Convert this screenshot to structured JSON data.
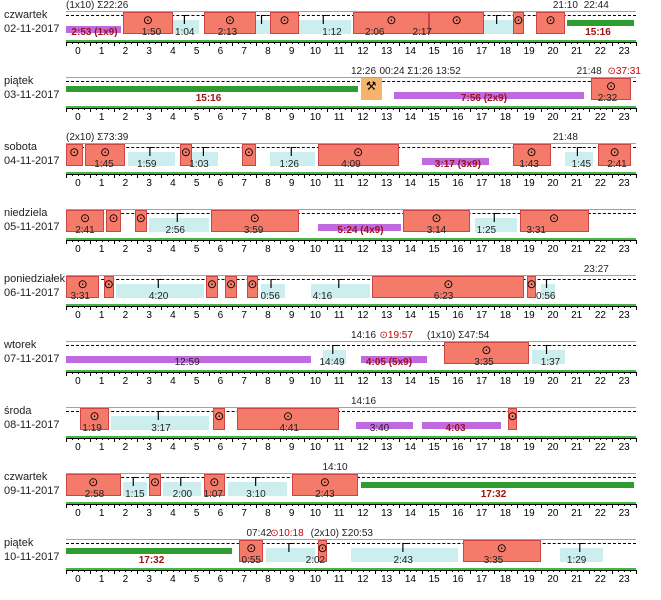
{
  "hours": [
    "0",
    "1",
    "2",
    "3",
    "4",
    "5",
    "6",
    "7",
    "8",
    "9",
    "10",
    "11",
    "12",
    "13",
    "14",
    "15",
    "16",
    "17",
    "18",
    "19",
    "20",
    "21",
    "22",
    "23"
  ],
  "colors": {
    "drive": "#f47a6a",
    "rest": "#cdeeee",
    "work": "#f5b46a",
    "avail": "#fbeaa0",
    "green": "#2e9c2e",
    "purple": "#c06adf"
  },
  "icons": {
    "rest": "bed-icon",
    "drive": "steering-wheel-icon",
    "work": "hammer-icon"
  },
  "days": [
    {
      "name": "czwartek",
      "date": "02-11-2017",
      "headers": [
        {
          "h": 0,
          "text": "(1x10) Σ22:26"
        },
        {
          "h": 20.5,
          "text": "21:10"
        },
        {
          "h": 21.8,
          "text": "22:44"
        }
      ],
      "segments": [
        {
          "t": "purple",
          "s": 0,
          "e": 2.3
        },
        {
          "t": "drive",
          "s": 2.4,
          "e": 4.5
        },
        {
          "t": "rest",
          "s": 4.5,
          "e": 5.6
        },
        {
          "t": "drive",
          "s": 5.8,
          "e": 8.0
        },
        {
          "t": "rest",
          "s": 8.0,
          "e": 8.6
        },
        {
          "t": "drive",
          "s": 8.6,
          "e": 9.8
        },
        {
          "t": "rest",
          "s": 9.8,
          "e": 12.0
        },
        {
          "t": "drive",
          "s": 12.1,
          "e": 15.3
        },
        {
          "t": "drive",
          "s": 15.3,
          "e": 17.6
        },
        {
          "t": "rest",
          "s": 17.6,
          "e": 18.8
        },
        {
          "t": "drive",
          "s": 18.8,
          "e": 19.3
        },
        {
          "t": "drive",
          "s": 19.8,
          "e": 21.0
        },
        {
          "t": "green",
          "s": 21.1,
          "e": 23.9
        }
      ],
      "labels": [
        {
          "h": 1.2,
          "text": "2:53 (1x9)",
          "bold": true
        },
        {
          "h": 3.6,
          "text": "1:50"
        },
        {
          "h": 5.0,
          "text": "1:04"
        },
        {
          "h": 6.8,
          "text": "2:13"
        },
        {
          "h": 11.2,
          "text": "1:12"
        },
        {
          "h": 13.0,
          "text": "2:06"
        },
        {
          "h": 15.0,
          "text": "2:17"
        },
        {
          "h": 22.4,
          "text": "15:16",
          "bold": true
        }
      ]
    },
    {
      "name": "piątek",
      "date": "03-11-2017",
      "headers": [
        {
          "h": 12.0,
          "text": "12:26"
        },
        {
          "h": 13.2,
          "text": "00:24 Σ1:26 13:52"
        },
        {
          "h": 21.5,
          "text": "21:48"
        },
        {
          "h": 22.8,
          "text": "37:31",
          "red": true
        }
      ],
      "segments": [
        {
          "t": "green",
          "s": 0,
          "e": 12.3
        },
        {
          "t": "work",
          "s": 12.4,
          "e": 13.3
        },
        {
          "t": "purple",
          "s": 13.8,
          "e": 21.8
        },
        {
          "t": "drive",
          "s": 22.1,
          "e": 23.8
        }
      ],
      "labels": [
        {
          "h": 6.0,
          "text": "15:16",
          "bold": true
        },
        {
          "h": 17.6,
          "text": "7:56 (2x9)",
          "bold": true
        },
        {
          "h": 22.8,
          "text": "2:32"
        }
      ]
    },
    {
      "name": "sobota",
      "date": "04-11-2017",
      "headers": [
        {
          "h": 0,
          "text": "(2x10) Σ73:39"
        },
        {
          "h": 20.5,
          "text": "21:48"
        }
      ],
      "segments": [
        {
          "t": "drive",
          "s": 0,
          "e": 0.7
        },
        {
          "t": "drive",
          "s": 0.8,
          "e": 2.5
        },
        {
          "t": "rest",
          "s": 2.6,
          "e": 4.6
        },
        {
          "t": "drive",
          "s": 4.8,
          "e": 5.3
        },
        {
          "t": "rest",
          "s": 5.3,
          "e": 6.4
        },
        {
          "t": "drive",
          "s": 7.4,
          "e": 8.0
        },
        {
          "t": "rest",
          "s": 8.6,
          "e": 10.5
        },
        {
          "t": "drive",
          "s": 10.6,
          "e": 14.0
        },
        {
          "t": "purple",
          "s": 15.0,
          "e": 17.8
        },
        {
          "t": "drive",
          "s": 18.8,
          "e": 20.4
        },
        {
          "t": "rest",
          "s": 21.0,
          "e": 22.2
        },
        {
          "t": "drive",
          "s": 22.4,
          "e": 23.8
        }
      ],
      "labels": [
        {
          "h": 1.6,
          "text": "1:45"
        },
        {
          "h": 3.4,
          "text": "1:59"
        },
        {
          "h": 5.6,
          "text": "1:03"
        },
        {
          "h": 9.4,
          "text": "1:26"
        },
        {
          "h": 12.0,
          "text": "4:09"
        },
        {
          "h": 16.5,
          "text": "3:17 (3x9)",
          "bold": true
        },
        {
          "h": 19.5,
          "text": "1:43"
        },
        {
          "h": 21.7,
          "text": "1:45"
        },
        {
          "h": 23.2,
          "text": "2:41"
        }
      ]
    },
    {
      "name": "niedziela",
      "date": "05-11-2017",
      "headers": [],
      "segments": [
        {
          "t": "drive",
          "s": 0,
          "e": 1.6
        },
        {
          "t": "drive",
          "s": 1.7,
          "e": 2.3
        },
        {
          "t": "drive",
          "s": 2.9,
          "e": 3.4
        },
        {
          "t": "rest",
          "s": 3.5,
          "e": 6.0
        },
        {
          "t": "drive",
          "s": 6.1,
          "e": 9.8
        },
        {
          "t": "purple",
          "s": 10.6,
          "e": 14.1
        },
        {
          "t": "drive",
          "s": 14.2,
          "e": 17.0
        },
        {
          "t": "rest",
          "s": 17.2,
          "e": 19.0
        },
        {
          "t": "drive",
          "s": 19.1,
          "e": 22.0
        }
      ],
      "labels": [
        {
          "h": 0.8,
          "text": "2:41"
        },
        {
          "h": 4.6,
          "text": "2:56"
        },
        {
          "h": 7.9,
          "text": "3:59"
        },
        {
          "h": 12.4,
          "text": "5:24 (4x9)",
          "bold": true
        },
        {
          "h": 15.6,
          "text": "3:14"
        },
        {
          "h": 17.7,
          "text": "1:25"
        },
        {
          "h": 19.8,
          "text": "3:31"
        }
      ]
    },
    {
      "name": "poniedziałek",
      "date": "06-11-2017",
      "headers": [
        {
          "h": 21.8,
          "text": "23:27"
        }
      ],
      "segments": [
        {
          "t": "drive",
          "s": 0,
          "e": 1.4
        },
        {
          "t": "drive",
          "s": 1.6,
          "e": 2.0
        },
        {
          "t": "rest",
          "s": 2.1,
          "e": 5.8
        },
        {
          "t": "drive",
          "s": 5.9,
          "e": 6.4
        },
        {
          "t": "drive",
          "s": 6.7,
          "e": 7.2
        },
        {
          "t": "drive",
          "s": 7.6,
          "e": 8.1
        },
        {
          "t": "rest",
          "s": 8.2,
          "e": 9.2
        },
        {
          "t": "rest",
          "s": 10.3,
          "e": 12.8
        },
        {
          "t": "drive",
          "s": 12.9,
          "e": 19.3
        },
        {
          "t": "drive",
          "s": 19.4,
          "e": 19.8
        },
        {
          "t": "rest",
          "s": 20.0,
          "e": 20.6
        }
      ],
      "labels": [
        {
          "h": 0.6,
          "text": "3:31"
        },
        {
          "h": 3.9,
          "text": "4:20"
        },
        {
          "h": 8.6,
          "text": "0:56"
        },
        {
          "h": 10.8,
          "text": "4:16"
        },
        {
          "h": 15.9,
          "text": "6:23"
        },
        {
          "h": 20.2,
          "text": "0:56"
        }
      ]
    },
    {
      "name": "wtorek",
      "date": "07-11-2017",
      "headers": [
        {
          "h": 12.0,
          "text": "14:16"
        },
        {
          "h": 13.2,
          "text": "19:57",
          "red": true
        },
        {
          "h": 15.2,
          "text": "(1x10) Σ47:54"
        }
      ],
      "segments": [
        {
          "t": "purple",
          "s": 0,
          "e": 10.3
        },
        {
          "t": "rest",
          "s": 10.8,
          "e": 11.8
        },
        {
          "t": "purple",
          "s": 12.4,
          "e": 15.2
        },
        {
          "t": "drive",
          "s": 15.9,
          "e": 19.5
        },
        {
          "t": "rest",
          "s": 19.6,
          "e": 21.0
        }
      ],
      "labels": [
        {
          "h": 5.1,
          "text": "12:59",
          "bold": false
        },
        {
          "h": 11.2,
          "text": "14:49"
        },
        {
          "h": 13.6,
          "text": "4:05 (5x9)",
          "bold": true
        },
        {
          "h": 17.6,
          "text": "3:35"
        },
        {
          "h": 20.4,
          "text": "1:37"
        }
      ]
    },
    {
      "name": "środa",
      "date": "08-11-2017",
      "headers": [
        {
          "h": 12.0,
          "text": "14:16"
        }
      ],
      "segments": [
        {
          "t": "drive",
          "s": 0.6,
          "e": 1.8
        },
        {
          "t": "rest",
          "s": 1.9,
          "e": 6.0
        },
        {
          "t": "drive",
          "s": 6.2,
          "e": 6.7
        },
        {
          "t": "drive",
          "s": 7.2,
          "e": 11.5
        },
        {
          "t": "purple",
          "s": 12.2,
          "e": 14.6
        },
        {
          "t": "purple",
          "s": 15.0,
          "e": 18.3
        },
        {
          "t": "drive",
          "s": 18.6,
          "e": 19.0
        }
      ],
      "labels": [
        {
          "h": 1.1,
          "text": "1:19"
        },
        {
          "h": 4.0,
          "text": "3:17"
        },
        {
          "h": 9.4,
          "text": "4:41"
        },
        {
          "h": 13.2,
          "text": "3:40"
        },
        {
          "h": 16.4,
          "text": "4:03",
          "bold": true
        }
      ]
    },
    {
      "name": "czwartek",
      "date": "09-11-2017",
      "headers": [
        {
          "h": 10.8,
          "text": "14:10"
        }
      ],
      "segments": [
        {
          "t": "drive",
          "s": 0,
          "e": 2.3
        },
        {
          "t": "rest",
          "s": 2.4,
          "e": 3.4
        },
        {
          "t": "drive",
          "s": 3.5,
          "e": 4.0
        },
        {
          "t": "rest",
          "s": 4.1,
          "e": 5.7
        },
        {
          "t": "drive",
          "s": 5.8,
          "e": 6.7
        },
        {
          "t": "rest",
          "s": 6.8,
          "e": 9.3
        },
        {
          "t": "drive",
          "s": 9.5,
          "e": 12.3
        },
        {
          "t": "green",
          "s": 12.4,
          "e": 23.9
        }
      ],
      "labels": [
        {
          "h": 1.2,
          "text": "2:58"
        },
        {
          "h": 2.9,
          "text": "1:15"
        },
        {
          "h": 4.9,
          "text": "2:00"
        },
        {
          "h": 6.2,
          "text": "1:07"
        },
        {
          "h": 8.0,
          "text": "3:10"
        },
        {
          "h": 10.9,
          "text": "2:43"
        },
        {
          "h": 18.0,
          "text": "17:32",
          "bold": true
        }
      ]
    },
    {
      "name": "piątek",
      "date": "10-11-2017",
      "headers": [
        {
          "h": 7.6,
          "text": "07:42"
        },
        {
          "h": 8.6,
          "text": "10:18",
          "red": true
        },
        {
          "h": 10.3,
          "text": "(2x10) Σ20:53"
        }
      ],
      "segments": [
        {
          "t": "green",
          "s": 0,
          "e": 7.0
        },
        {
          "t": "drive",
          "s": 7.3,
          "e": 8.3
        },
        {
          "t": "rest",
          "s": 8.4,
          "e": 10.5
        },
        {
          "t": "drive",
          "s": 10.6,
          "e": 11.0
        },
        {
          "t": "rest",
          "s": 12.0,
          "e": 16.5
        },
        {
          "t": "drive",
          "s": 16.7,
          "e": 20.0
        },
        {
          "t": "rest",
          "s": 20.8,
          "e": 22.6
        }
      ],
      "labels": [
        {
          "h": 3.6,
          "text": "17:32",
          "bold": true
        },
        {
          "h": 7.8,
          "text": "0:55"
        },
        {
          "h": 10.5,
          "text": "2:02"
        },
        {
          "h": 14.2,
          "text": "2:43"
        },
        {
          "h": 18.0,
          "text": "3:35"
        },
        {
          "h": 21.5,
          "text": "1:29"
        }
      ]
    }
  ]
}
